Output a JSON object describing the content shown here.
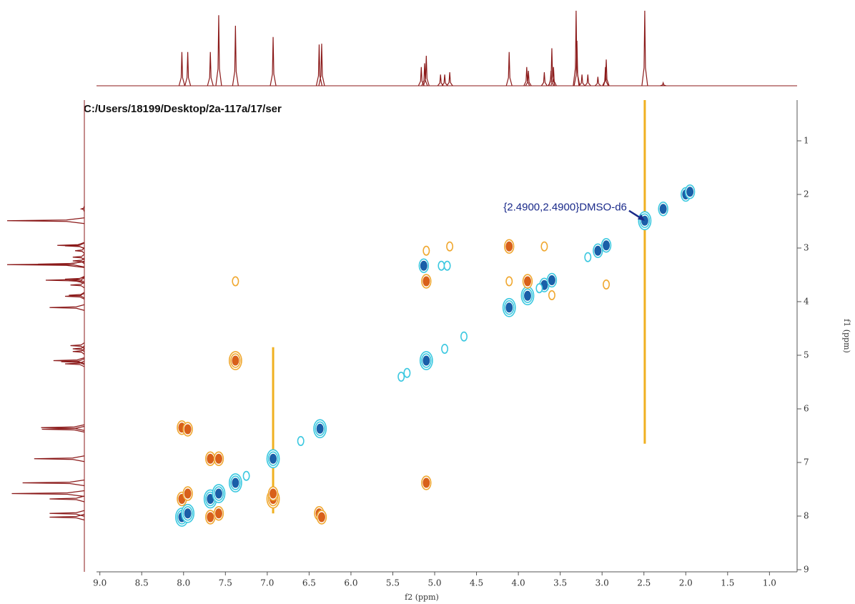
{
  "chart_data": {
    "type": "contour",
    "title": "C:/Users/18199/Desktop/2a-117a/17/ser",
    "xlabel": "f2 (ppm)",
    "ylabel": "f1 (ppm)",
    "xlim": [
      9.04,
      0.67
    ],
    "ylim": [
      0.24,
      9.04
    ],
    "xticks": [
      {
        "value": 9,
        "label": "9.0"
      },
      8.5,
      {
        "value": 8,
        "label": "8.0"
      },
      7.5,
      {
        "value": 7,
        "label": "7.0"
      },
      6.5,
      {
        "value": 6,
        "label": "6.0"
      },
      5.5,
      {
        "value": 5,
        "label": "5.0"
      },
      4.5,
      {
        "value": 4,
        "label": "4.0"
      },
      3.5,
      {
        "value": 3,
        "label": "3.0"
      },
      2.5,
      {
        "value": 2,
        "label": "2.0"
      },
      1.5,
      {
        "value": 1,
        "label": "1.0"
      }
    ],
    "yticks": [
      1,
      2,
      3,
      4,
      5,
      6,
      7,
      8,
      9
    ],
    "projection": {
      "color": "#8b1a1a",
      "x": [
        8.02,
        7.95,
        7.68,
        7.58,
        7.38,
        6.93,
        6.38,
        6.35,
        5.16,
        5.12,
        5.1,
        4.93,
        4.88,
        4.82,
        4.11,
        3.9,
        3.88,
        3.69,
        3.61,
        3.6,
        3.58,
        3.31,
        3.3,
        3.24,
        3.17,
        3.05,
        2.96,
        2.95,
        2.49,
        2.27
      ],
      "values": [
        45,
        45,
        45,
        94,
        80,
        65,
        55,
        56,
        25,
        30,
        40,
        15,
        15,
        18,
        45,
        25,
        20,
        18,
        20,
        50,
        25,
        100,
        60,
        15,
        15,
        12,
        25,
        35,
        100,
        4
      ]
    },
    "diagonal_peaks": {
      "ring_color": "#3cc8e0",
      "core_color": "#1a5fa8",
      "x": [
        8.02,
        7.95,
        7.68,
        7.58,
        7.38,
        6.93,
        6.37,
        5.1,
        4.11,
        3.89,
        3.69,
        3.6,
        5.13,
        4.92,
        4.85,
        3.17,
        3.05,
        2.95,
        2.49,
        2.27,
        2.0,
        1.95,
        5.4,
        5.33,
        4.88,
        4.65,
        6.6,
        7.25,
        3.75
      ],
      "y": [
        8.02,
        7.95,
        7.68,
        7.58,
        7.38,
        6.93,
        6.37,
        5.1,
        4.11,
        3.89,
        3.69,
        3.6,
        3.33,
        3.33,
        3.33,
        3.17,
        3.05,
        2.95,
        2.49,
        2.27,
        2.0,
        1.95,
        5.4,
        5.33,
        4.88,
        4.65,
        6.6,
        7.25,
        3.75
      ],
      "intensity": [
        3,
        3,
        3,
        3,
        3,
        3,
        3,
        3,
        3,
        3,
        2,
        2,
        2,
        1,
        1,
        1,
        2,
        2,
        3,
        2,
        2,
        2,
        1,
        1,
        1,
        1,
        1,
        1,
        1
      ]
    },
    "cross_peaks": {
      "ring_color": "#f0a830",
      "core_color": "#d8601a",
      "x": [
        8.02,
        7.95,
        8.02,
        7.95,
        7.68,
        7.58,
        7.68,
        7.58,
        7.38,
        7.38,
        6.93,
        6.93,
        6.38,
        6.35,
        5.1,
        5.1,
        5.1,
        4.82,
        4.11,
        4.11,
        3.89,
        3.69,
        3.6,
        2.95
      ],
      "y": [
        6.35,
        6.38,
        7.68,
        7.58,
        6.93,
        6.93,
        8.02,
        7.95,
        5.1,
        3.62,
        7.68,
        7.58,
        7.95,
        8.02,
        7.38,
        3.62,
        3.05,
        2.97,
        2.97,
        3.62,
        3.62,
        2.97,
        3.88,
        3.68
      ],
      "intensity": [
        2,
        2,
        2,
        2,
        2,
        2,
        2,
        2,
        3,
        1,
        3,
        2,
        2,
        2,
        2,
        2,
        1,
        1,
        2,
        1,
        2,
        1,
        1,
        1
      ]
    },
    "streaks": {
      "color": "#f0b020",
      "x": [
        2.49,
        6.93
      ],
      "y_from": [
        0.24,
        4.85
      ],
      "y_to": [
        6.65,
        7.95
      ]
    },
    "annotation": {
      "text": "{2.4900,2.4900}DMSO-d6",
      "x": 2.49,
      "y": 2.49
    }
  }
}
